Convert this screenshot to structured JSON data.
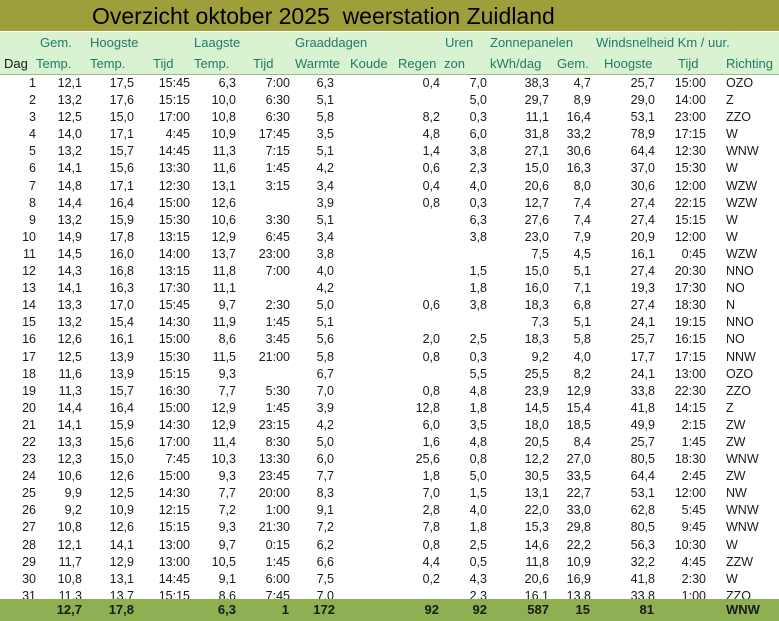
{
  "title": "Overzicht oktober 2025  weerstation Zuidland",
  "header_row1": {
    "gem": "Gem.",
    "hoogste": "Hoogste",
    "laagste": "Laagste",
    "graaddagen": "Graaddagen",
    "uren": "Uren",
    "zonnepanelen": "Zonnepanelen",
    "wind": "Windsnelheid Km / uur."
  },
  "header_row2": [
    "Dag",
    "Temp.",
    "Temp.",
    "Tijd",
    "Temp.",
    "Tijd",
    "Warmte",
    "Koude",
    "Regen",
    "zon",
    "kWh/dag",
    "Gem.",
    "Hoogste",
    "Tijd",
    "Richting"
  ],
  "rows": [
    [
      "1",
      "12,1",
      "17,5",
      "15:45",
      "6,3",
      "7:00",
      "6,3",
      "",
      "0,4",
      "7,0",
      "38,3",
      "4,7",
      "25,7",
      "15:00",
      "OZO"
    ],
    [
      "2",
      "13,2",
      "17,6",
      "15:15",
      "10,0",
      "6:30",
      "5,1",
      "",
      "",
      "5,0",
      "29,7",
      "8,9",
      "29,0",
      "14:00",
      "Z"
    ],
    [
      "3",
      "12,5",
      "15,0",
      "17:00",
      "10,8",
      "6:30",
      "5,8",
      "",
      "8,2",
      "0,3",
      "11,1",
      "16,4",
      "53,1",
      "23:00",
      "ZZO"
    ],
    [
      "4",
      "14,0",
      "17,1",
      "4:45",
      "10,9",
      "17:45",
      "3,5",
      "",
      "4,8",
      "6,0",
      "31,8",
      "33,2",
      "78,9",
      "17:15",
      "W"
    ],
    [
      "5",
      "13,2",
      "15,7",
      "14:45",
      "11,3",
      "7:15",
      "5,1",
      "",
      "1,4",
      "3,8",
      "27,1",
      "30,6",
      "64,4",
      "12:30",
      "WNW"
    ],
    [
      "6",
      "14,1",
      "15,6",
      "13:30",
      "11,6",
      "1:45",
      "4,2",
      "",
      "0,6",
      "2,3",
      "15,0",
      "16,3",
      "37,0",
      "15:30",
      "W"
    ],
    [
      "7",
      "14,8",
      "17,1",
      "12:30",
      "13,1",
      "3:15",
      "3,4",
      "",
      "0,4",
      "4,0",
      "20,6",
      "8,0",
      "30,6",
      "12:00",
      "WZW"
    ],
    [
      "8",
      "14,4",
      "16,4",
      "15:00",
      "12,6",
      "",
      "3,9",
      "",
      "0,8",
      "0,3",
      "12,7",
      "7,4",
      "27,4",
      "22:15",
      "WZW"
    ],
    [
      "9",
      "13,2",
      "15,9",
      "15:30",
      "10,6",
      "3:30",
      "5,1",
      "",
      "",
      "6,3",
      "27,6",
      "7,4",
      "27,4",
      "15:15",
      "W"
    ],
    [
      "10",
      "14,9",
      "17,8",
      "13:15",
      "12,9",
      "6:45",
      "3,4",
      "",
      "",
      "3,8",
      "23,0",
      "7,9",
      "20,9",
      "12:00",
      "W"
    ],
    [
      "11",
      "14,5",
      "16,0",
      "14:00",
      "13,7",
      "23:00",
      "3,8",
      "",
      "",
      "",
      "7,5",
      "4,5",
      "16,1",
      "0:45",
      "WZW"
    ],
    [
      "12",
      "14,3",
      "16,8",
      "13:15",
      "11,8",
      "7:00",
      "4,0",
      "",
      "",
      "1,5",
      "15,0",
      "5,1",
      "27,4",
      "20:30",
      "NNO"
    ],
    [
      "13",
      "14,1",
      "16,3",
      "17:30",
      "11,1",
      "",
      "4,2",
      "",
      "",
      "1,8",
      "16,0",
      "7,1",
      "19,3",
      "17:30",
      "NO"
    ],
    [
      "14",
      "13,3",
      "17,0",
      "15:45",
      "9,7",
      "2:30",
      "5,0",
      "",
      "0,6",
      "3,8",
      "18,3",
      "6,8",
      "27,4",
      "18:30",
      "N"
    ],
    [
      "15",
      "13,2",
      "15,4",
      "14:30",
      "11,9",
      "1:45",
      "5,1",
      "",
      "",
      "",
      "7,3",
      "5,1",
      "24,1",
      "19:15",
      "NNO"
    ],
    [
      "16",
      "12,6",
      "16,1",
      "15:00",
      "8,6",
      "3:45",
      "5,6",
      "",
      "2,0",
      "2,5",
      "18,3",
      "5,8",
      "25,7",
      "16:15",
      "NO"
    ],
    [
      "17",
      "12,5",
      "13,9",
      "15:30",
      "11,5",
      "21:00",
      "5,8",
      "",
      "0,8",
      "0,3",
      "9,2",
      "4,0",
      "17,7",
      "17:15",
      "NNW"
    ],
    [
      "18",
      "11,6",
      "13,9",
      "15:15",
      "9,3",
      "",
      "6,7",
      "",
      "",
      "5,5",
      "25,5",
      "8,2",
      "24,1",
      "13:00",
      "OZO"
    ],
    [
      "19",
      "11,3",
      "15,7",
      "16:30",
      "7,7",
      "5:30",
      "7,0",
      "",
      "0,8",
      "4,8",
      "23,9",
      "12,9",
      "33,8",
      "22:30",
      "ZZO"
    ],
    [
      "20",
      "14,4",
      "16,4",
      "15:00",
      "12,9",
      "1:45",
      "3,9",
      "",
      "12,8",
      "1,8",
      "14,5",
      "15,4",
      "41,8",
      "14:15",
      "Z"
    ],
    [
      "21",
      "14,1",
      "15,9",
      "14:30",
      "12,9",
      "23:15",
      "4,2",
      "",
      "6,0",
      "3,5",
      "18,0",
      "18,5",
      "49,9",
      "2:15",
      "ZW"
    ],
    [
      "22",
      "13,3",
      "15,6",
      "17:00",
      "11,4",
      "8:30",
      "5,0",
      "",
      "1,6",
      "4,8",
      "20,5",
      "8,4",
      "25,7",
      "1:45",
      "ZW"
    ],
    [
      "23",
      "12,3",
      "15,0",
      "7:45",
      "10,3",
      "13:30",
      "6,0",
      "",
      "25,6",
      "0,8",
      "12,2",
      "27,0",
      "80,5",
      "18:30",
      "WNW"
    ],
    [
      "24",
      "10,6",
      "12,6",
      "15:00",
      "9,3",
      "23:45",
      "7,7",
      "",
      "1,8",
      "5,0",
      "30,5",
      "33,5",
      "64,4",
      "2:45",
      "ZW"
    ],
    [
      "25",
      "9,9",
      "12,5",
      "14:30",
      "7,7",
      "20:00",
      "8,3",
      "",
      "7,0",
      "1,5",
      "13,1",
      "22,7",
      "53,1",
      "12:00",
      "NW"
    ],
    [
      "26",
      "9,2",
      "10,9",
      "12:15",
      "7,2",
      "1:00",
      "9,1",
      "",
      "2,8",
      "4,0",
      "22,0",
      "33,0",
      "62,8",
      "5:45",
      "WNW"
    ],
    [
      "27",
      "10,8",
      "12,6",
      "15:15",
      "9,3",
      "21:30",
      "7,2",
      "",
      "7,8",
      "1,8",
      "15,3",
      "29,8",
      "80,5",
      "9:45",
      "WNW"
    ],
    [
      "28",
      "12,1",
      "14,1",
      "13:00",
      "9,7",
      "0:15",
      "6,2",
      "",
      "0,8",
      "2,5",
      "14,6",
      "22,2",
      "56,3",
      "10:30",
      "W"
    ],
    [
      "29",
      "11,7",
      "12,9",
      "13:00",
      "10,5",
      "1:45",
      "6,6",
      "",
      "4,4",
      "0,5",
      "11,8",
      "10,9",
      "32,2",
      "4:45",
      "ZZW"
    ],
    [
      "30",
      "10,8",
      "13,1",
      "14:45",
      "9,1",
      "6:00",
      "7,5",
      "",
      "0,2",
      "4,3",
      "20,6",
      "16,9",
      "41,8",
      "2:30",
      "W"
    ],
    [
      "31",
      "11,3",
      "13,7",
      "15:15",
      "8,6",
      "7:45",
      "7,0",
      "",
      "",
      "2,3",
      "16,1",
      "13,8",
      "33,8",
      "1:00",
      "ZZO"
    ]
  ],
  "totals": {
    "gem_temp": "12,7",
    "hoogste_temp": "17,8",
    "laagste_temp": "6,3",
    "laagste_tijd": "1",
    "warmte": "172",
    "regen": "92",
    "zon": "92",
    "kwh": "587",
    "wind_gem": "15",
    "wind_hoogste": "81",
    "richting": "WNW"
  },
  "colors": {
    "title_bg": "#9da03a",
    "header_bg": "#d9f2d0",
    "header_text": "#1f7a6a",
    "total_bg": "#8eb052"
  }
}
